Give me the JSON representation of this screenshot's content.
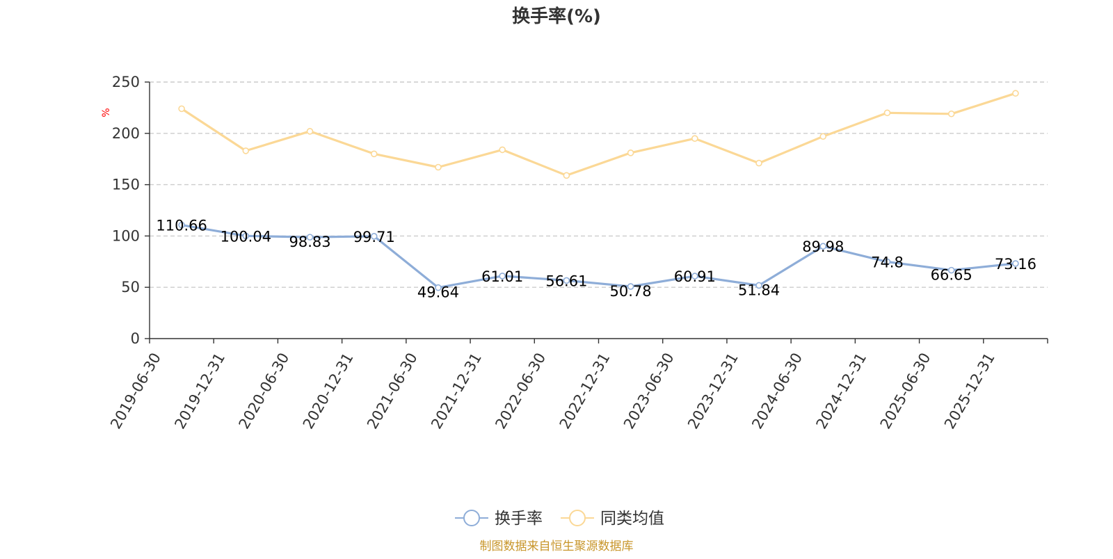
{
  "chart_data": {
    "type": "line",
    "title": "换手率(%)",
    "ylabel": "%",
    "ylim": [
      0,
      250
    ],
    "yticks": [
      0,
      50,
      100,
      150,
      200,
      250
    ],
    "grid": true,
    "legend_position": "bottom-center",
    "categories": [
      "2019-06-30",
      "2019-12-31",
      "2020-06-30",
      "2020-12-31",
      "2021-06-30",
      "2021-12-31",
      "2022-06-30",
      "2022-12-31",
      "2023-06-30",
      "2023-12-31",
      "2024-06-30",
      "2024-12-31",
      "2025-06-30",
      "2025-12-31"
    ],
    "series": [
      {
        "name": "换手率",
        "color": "#8eadd8",
        "values": [
          110.66,
          100.04,
          98.83,
          99.71,
          49.64,
          61.01,
          56.61,
          50.78,
          60.91,
          51.84,
          89.98,
          74.8,
          66.65,
          73.16
        ],
        "labels": [
          "110.66",
          "100.04",
          "98.83",
          "99.71",
          "49.64",
          "61.01",
          "56.61",
          "50.78",
          "60.91",
          "51.84",
          "89.98",
          "74.8",
          "66.65",
          "73.16"
        ]
      },
      {
        "name": "同类均值",
        "color": "#fbd896",
        "values": [
          224,
          183,
          202,
          180,
          167,
          184,
          159,
          181,
          195,
          171,
          197,
          220,
          219,
          239
        ]
      }
    ],
    "source": "制图数据来自恒生聚源数据库",
    "colors": {
      "axis": "#333333",
      "grid": "#cccccc",
      "ylabel": "#ff0000",
      "source": "#c8962b"
    }
  }
}
